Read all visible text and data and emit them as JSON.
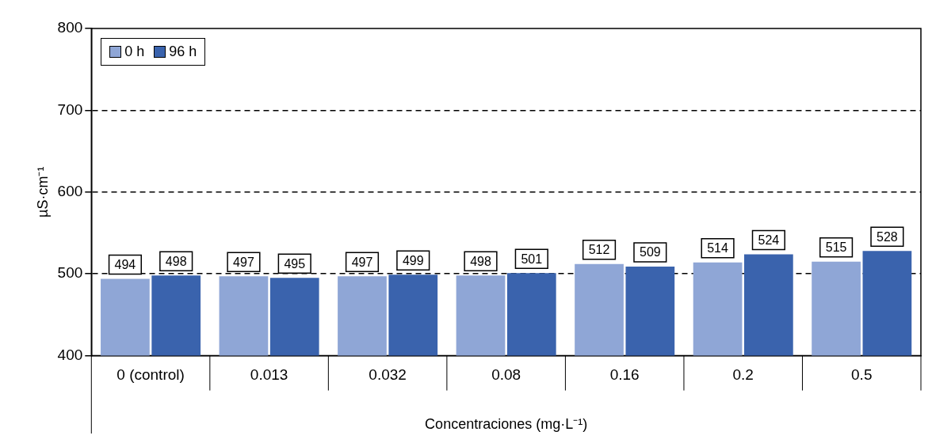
{
  "chart_data": {
    "type": "bar",
    "xlabel": "Concentraciones (mg·L⁻¹)",
    "ylabel": "µS·cm⁻¹",
    "categories": [
      "0 (control)",
      "0.013",
      "0.032",
      "0.08",
      "0.16",
      "0.2",
      "0.5"
    ],
    "series": [
      {
        "name": "0 h",
        "color": "#8fa6d6",
        "values": [
          494,
          497,
          497,
          498,
          512,
          514,
          515
        ]
      },
      {
        "name": "96 h",
        "color": "#3a63ad",
        "values": [
          498,
          495,
          499,
          501,
          509,
          524,
          528
        ]
      }
    ],
    "ylim": [
      400,
      800
    ],
    "yticks": [
      400,
      500,
      600,
      700,
      800
    ],
    "grid": "y",
    "legend": "top left",
    "data_labels": true
  }
}
